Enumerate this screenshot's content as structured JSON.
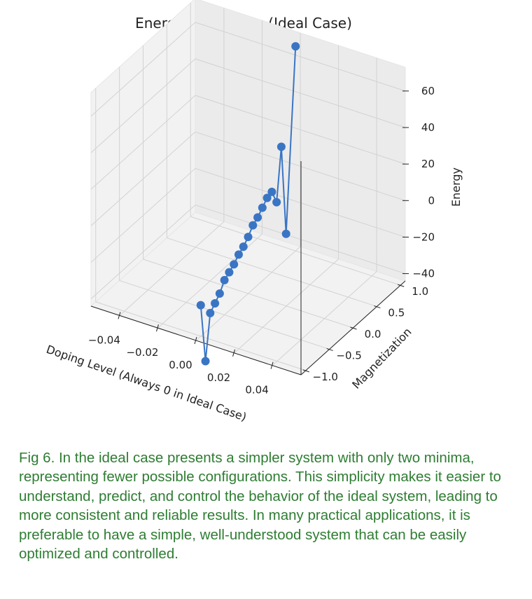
{
  "chart_data": {
    "type": "scatter",
    "title": "Energy Landscape (Ideal Case)",
    "xlabel": "Doping Level (Always 0 in Ideal Case)",
    "ylabel": "Magnetization",
    "zlabel": "Energy",
    "x_ticks": [
      "−0.04",
      "−0.02",
      "0.00",
      "0.02",
      "0.04"
    ],
    "y_ticks": [
      "−1.0",
      "−0.5",
      "0.0",
      "0.5",
      "1.0"
    ],
    "z_ticks": [
      "−40",
      "−20",
      "0",
      "20",
      "40",
      "60"
    ],
    "xlim": [
      -0.055,
      0.055
    ],
    "ylim": [
      -1.1,
      1.1
    ],
    "zlim": [
      -44,
      73
    ],
    "grid": true,
    "series": [
      {
        "color": "#3a75c4",
        "marker": "circle",
        "points": [
          {
            "x": 0,
            "y": -1.0,
            "z": -27
          },
          {
            "x": 0,
            "y": -0.9,
            "z": -60
          },
          {
            "x": 0,
            "y": -0.8,
            "z": -36
          },
          {
            "x": 0,
            "y": -0.7,
            "z": -33
          },
          {
            "x": 0,
            "y": -0.6,
            "z": -30
          },
          {
            "x": 0,
            "y": -0.5,
            "z": -25
          },
          {
            "x": 0,
            "y": -0.4,
            "z": -23
          },
          {
            "x": 0,
            "y": -0.3,
            "z": -21
          },
          {
            "x": 0,
            "y": -0.2,
            "z": -18
          },
          {
            "x": 0,
            "y": -0.1,
            "z": -16
          },
          {
            "x": 0,
            "y": 0.0,
            "z": -13
          },
          {
            "x": 0,
            "y": 0.1,
            "z": -9
          },
          {
            "x": 0,
            "y": 0.2,
            "z": -7
          },
          {
            "x": 0,
            "y": 0.3,
            "z": -4
          },
          {
            "x": 0,
            "y": 0.4,
            "z": -1
          },
          {
            "x": 0,
            "y": 0.5,
            "z": 0
          },
          {
            "x": 0,
            "y": 0.6,
            "z": -8
          },
          {
            "x": 0,
            "y": 0.7,
            "z": 20
          },
          {
            "x": 0,
            "y": 0.8,
            "z": -30
          },
          {
            "x": 0,
            "y": 1.0,
            "z": 68
          }
        ]
      }
    ]
  },
  "caption": "Fig 6. In the ideal case presents a simpler system with only two minima, representing fewer possible configurations. This simplicity makes it easier to understand, predict, and control the behavior of the ideal system, leading to more consistent and reliable results. In many practical applications, it is preferable to have a simple, well-understood system that can be easily optimized and controlled."
}
